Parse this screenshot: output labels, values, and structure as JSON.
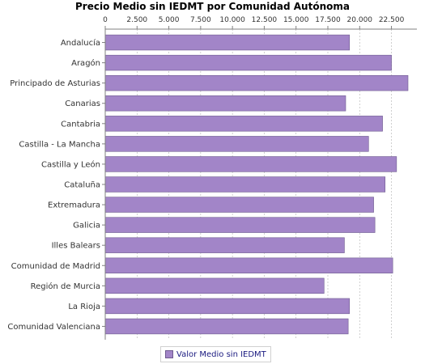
{
  "colors": {
    "bar_fill": "#a285c8",
    "bar_stroke": "#6e5a8f",
    "grid": "#b0b0b0",
    "axis": "#808080",
    "text": "#333333"
  },
  "chart_data": {
    "type": "bar",
    "orientation": "horizontal",
    "title": "Precio Medio sin IEDMT por Comunidad Autónoma",
    "xlabel": "",
    "ylabel": "",
    "x_axis_position": "top",
    "xlim": [
      0,
      24500
    ],
    "xticks": [
      0,
      2500,
      5000,
      7500,
      10000,
      12500,
      15000,
      17500,
      20000,
      22500
    ],
    "xtick_labels": [
      "0",
      "2.500",
      "5.000",
      "7.500",
      "10.000",
      "12.500",
      "15.000",
      "17.500",
      "20.000",
      "22.500"
    ],
    "grid": true,
    "legend_position": "bottom",
    "categories": [
      "Andalucía",
      "Aragón",
      "Principado de Asturias",
      "Canarias",
      "Cantabria",
      "Castilla - La Mancha",
      "Castilla y León",
      "Cataluña",
      "Extremadura",
      "Galicia",
      "Illes Balears",
      "Comunidad de Madrid",
      "Región de Murcia",
      "La Rioja",
      "Comunidad Valenciana"
    ],
    "series": [
      {
        "name": "Valor Medio sin IEDMT",
        "values": [
          19200,
          22500,
          23800,
          18900,
          21800,
          20700,
          22900,
          22000,
          21100,
          21200,
          18800,
          22600,
          17200,
          19200,
          19100
        ]
      }
    ]
  }
}
